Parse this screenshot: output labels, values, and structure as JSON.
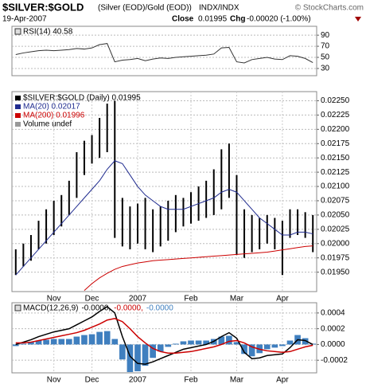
{
  "header": {
    "symbol": "$SILVER:$GOLD",
    "description": "(Silver (EOD)/Gold (EOD))",
    "exchange": "INDX/INDX",
    "credit": "© StockCharts.com",
    "date": "19-Apr-2007",
    "close_label": "Close",
    "close": "0.01995",
    "change_label": "Chg",
    "change": "-0.00020 (-1.00%)"
  },
  "chart_data": [
    {
      "type": "line",
      "label": "RSI(14) 40.58",
      "series": [
        {
          "color": "#333333",
          "values": [
            55,
            58,
            60,
            62,
            63,
            62,
            63,
            64,
            66,
            65,
            67,
            73,
            75,
            42,
            45,
            46,
            48,
            44,
            47,
            49,
            48,
            50,
            51,
            52,
            53,
            54,
            56,
            67,
            68,
            42,
            40,
            46,
            48,
            50,
            47,
            46,
            53,
            52,
            48,
            40.58
          ]
        }
      ],
      "ylim": [
        17,
        106
      ],
      "yticks": [
        90,
        70,
        50,
        30
      ],
      "grid": true
    },
    {
      "type": "hilo",
      "series": [
        {
          "name": "$SILVER:$GOLD (Daily) 0.01995",
          "color": "#000000",
          "high": [
            0.0199,
            0.02,
            0.02015,
            0.0204,
            0.0206,
            0.02075,
            0.02085,
            0.0211,
            0.0216,
            0.0218,
            0.0219,
            0.0222,
            0.02245,
            0.0225,
            0.0208,
            0.02065,
            0.0207,
            0.0208,
            0.0206,
            0.02065,
            0.02075,
            0.02085,
            0.0208,
            0.0209,
            0.021,
            0.0211,
            0.0213,
            0.02165,
            0.02175,
            0.0212,
            0.0206,
            0.0205,
            0.02045,
            0.0205,
            0.02045,
            0.0204,
            0.0206,
            0.0206,
            0.02055,
            0.0205
          ],
          "low": [
            0.01945,
            0.0196,
            0.0197,
            0.0199,
            0.02,
            0.02015,
            0.0203,
            0.0205,
            0.0208,
            0.0212,
            0.0214,
            0.0215,
            0.0216,
            0.0201,
            0.01995,
            0.0199,
            0.02,
            0.0199,
            0.01985,
            0.01995,
            0.02005,
            0.0202,
            0.0203,
            0.02035,
            0.0204,
            0.02045,
            0.0205,
            0.0206,
            0.0208,
            0.0198,
            0.01975,
            0.01985,
            0.0199,
            0.02,
            0.0199,
            0.01945,
            0.0201,
            0.02015,
            0.0201,
            0.01985
          ]
        },
        {
          "name": "MA(20) 0.02017",
          "color": "#1f2b8f",
          "values": [
            0.01945,
            0.0196,
            0.01975,
            0.0199,
            0.02005,
            0.0202,
            0.02035,
            0.0205,
            0.02065,
            0.0208,
            0.02095,
            0.0211,
            0.0213,
            0.02145,
            0.0214,
            0.0212,
            0.021,
            0.02085,
            0.02075,
            0.02065,
            0.0206,
            0.0206,
            0.0206,
            0.02065,
            0.0207,
            0.02075,
            0.0208,
            0.0209,
            0.02095,
            0.0209,
            0.02075,
            0.0206,
            0.02045,
            0.02035,
            0.02025,
            0.02015,
            0.02015,
            0.0202,
            0.0202,
            0.02017
          ]
        },
        {
          "name": "MA(200) 0.01996",
          "color": "#cc0000",
          "values": [
            null,
            null,
            null,
            null,
            null,
            null,
            null,
            null,
            null,
            0.01918,
            0.0193,
            0.0194,
            0.01948,
            0.01955,
            0.0196,
            0.01963,
            0.01966,
            0.01968,
            0.0197,
            0.01971,
            0.01972,
            0.01973,
            0.01974,
            0.01975,
            0.01976,
            0.01977,
            0.01978,
            0.01979,
            0.0198,
            0.01981,
            0.01982,
            0.01983,
            0.01984,
            0.01985,
            0.01987,
            0.01989,
            0.01991,
            0.01993,
            0.01995,
            0.01996
          ]
        }
      ],
      "volume_label": "Volume undef",
      "categories": [
        null,
        null,
        null,
        null,
        null,
        "Nov",
        null,
        null,
        null,
        null,
        "Dec",
        null,
        null,
        null,
        null,
        null,
        "2007",
        null,
        null,
        null,
        null,
        null,
        null,
        "Feb",
        null,
        null,
        null,
        null,
        null,
        "Mar",
        null,
        null,
        null,
        null,
        null,
        "Apr",
        null,
        null,
        null,
        null
      ],
      "ylim": [
        0.01916,
        0.02266
      ],
      "yticks": [
        {
          "value": 0.0225,
          "label": "0.02250"
        },
        0.02225,
        {
          "value": 0.022,
          "label": "0.02200"
        },
        0.02175,
        {
          "value": 0.0215,
          "label": "0.02150"
        },
        0.02125,
        {
          "value": 0.021,
          "label": "0.02100"
        },
        0.02075,
        {
          "value": 0.0205,
          "label": "0.02050"
        },
        0.02025,
        {
          "value": 0.02,
          "label": "0.02000"
        },
        0.01975,
        {
          "value": 0.0195,
          "label": "0.01950"
        }
      ],
      "grid": true
    },
    {
      "type": "macd",
      "label": "MACD(12,26,9)",
      "series": [
        {
          "name": "-0.0000,",
          "color": "#000000",
          "style": "line",
          "values": [
            0,
            3e-05,
            6e-05,
            0.0001,
            0.00013,
            0.00016,
            0.00018,
            0.0002,
            0.00025,
            0.0003,
            0.00035,
            0.00042,
            0.00048,
            0.0004,
            0.0001,
            -0.00015,
            -0.00024,
            -0.00025,
            -0.00022,
            -0.00018,
            -0.00014,
            -0.0001,
            -6e-05,
            -4e-05,
            -2e-05,
            0,
            4e-05,
            0.0001,
            0.00015,
            8e-05,
            -0.0001,
            -0.00018,
            -0.00017,
            -0.00014,
            -0.00013,
            -0.00012,
            -4e-05,
            6e-05,
            5e-05,
            0
          ]
        },
        {
          "name": "-0.0000,",
          "color": "#cc0000",
          "style": "line",
          "values": [
            2e-05,
            2e-05,
            3e-05,
            5e-05,
            7e-05,
            9e-05,
            0.00011,
            0.00013,
            0.00015,
            0.00018,
            0.00022,
            0.00026,
            0.00031,
            0.00033,
            0.00029,
            0.0002,
            0.0001,
            2e-05,
            -5e-05,
            -9e-05,
            -0.00011,
            -0.00011,
            -0.0001,
            -9e-05,
            -7e-05,
            -5e-05,
            -3e-05,
            0,
            4e-05,
            5e-05,
            2e-05,
            -3e-05,
            -6e-05,
            -8e-05,
            -9e-05,
            -0.0001,
            -9e-05,
            -6e-05,
            -3e-05,
            -1e-05
          ]
        },
        {
          "name": "-0.0000",
          "color": "#3f7fbf",
          "style": "bar",
          "values": [
            -2e-05,
            1e-05,
            3e-05,
            5e-05,
            6e-05,
            7e-05,
            7e-05,
            7e-05,
            0.0001,
            0.00012,
            0.00013,
            0.00016,
            0.00017,
            7e-05,
            -0.00019,
            -0.00035,
            -0.00034,
            -0.00027,
            -0.00017,
            -9e-05,
            -3e-05,
            1e-05,
            4e-05,
            5e-05,
            5e-05,
            5e-05,
            7e-05,
            0.0001,
            0.00011,
            3e-05,
            -0.00012,
            -0.00015,
            -0.00011,
            -6e-05,
            -4e-05,
            -2e-05,
            5e-05,
            0.00012,
            8e-05,
            1e-05
          ]
        }
      ],
      "categories": [
        null,
        null,
        null,
        null,
        null,
        "Nov",
        null,
        null,
        null,
        null,
        "Dec",
        null,
        null,
        null,
        null,
        null,
        "2007",
        null,
        null,
        null,
        null,
        null,
        null,
        "Feb",
        null,
        null,
        null,
        null,
        null,
        "Mar",
        null,
        null,
        null,
        null,
        null,
        "Apr",
        null,
        null,
        null,
        null
      ],
      "ylim": [
        -0.00036,
        0.00053
      ],
      "yticks": [
        0.0004,
        0.0002,
        {
          "value": 0,
          "label": "0.0000"
        },
        -0.0002
      ],
      "grid": true
    }
  ]
}
